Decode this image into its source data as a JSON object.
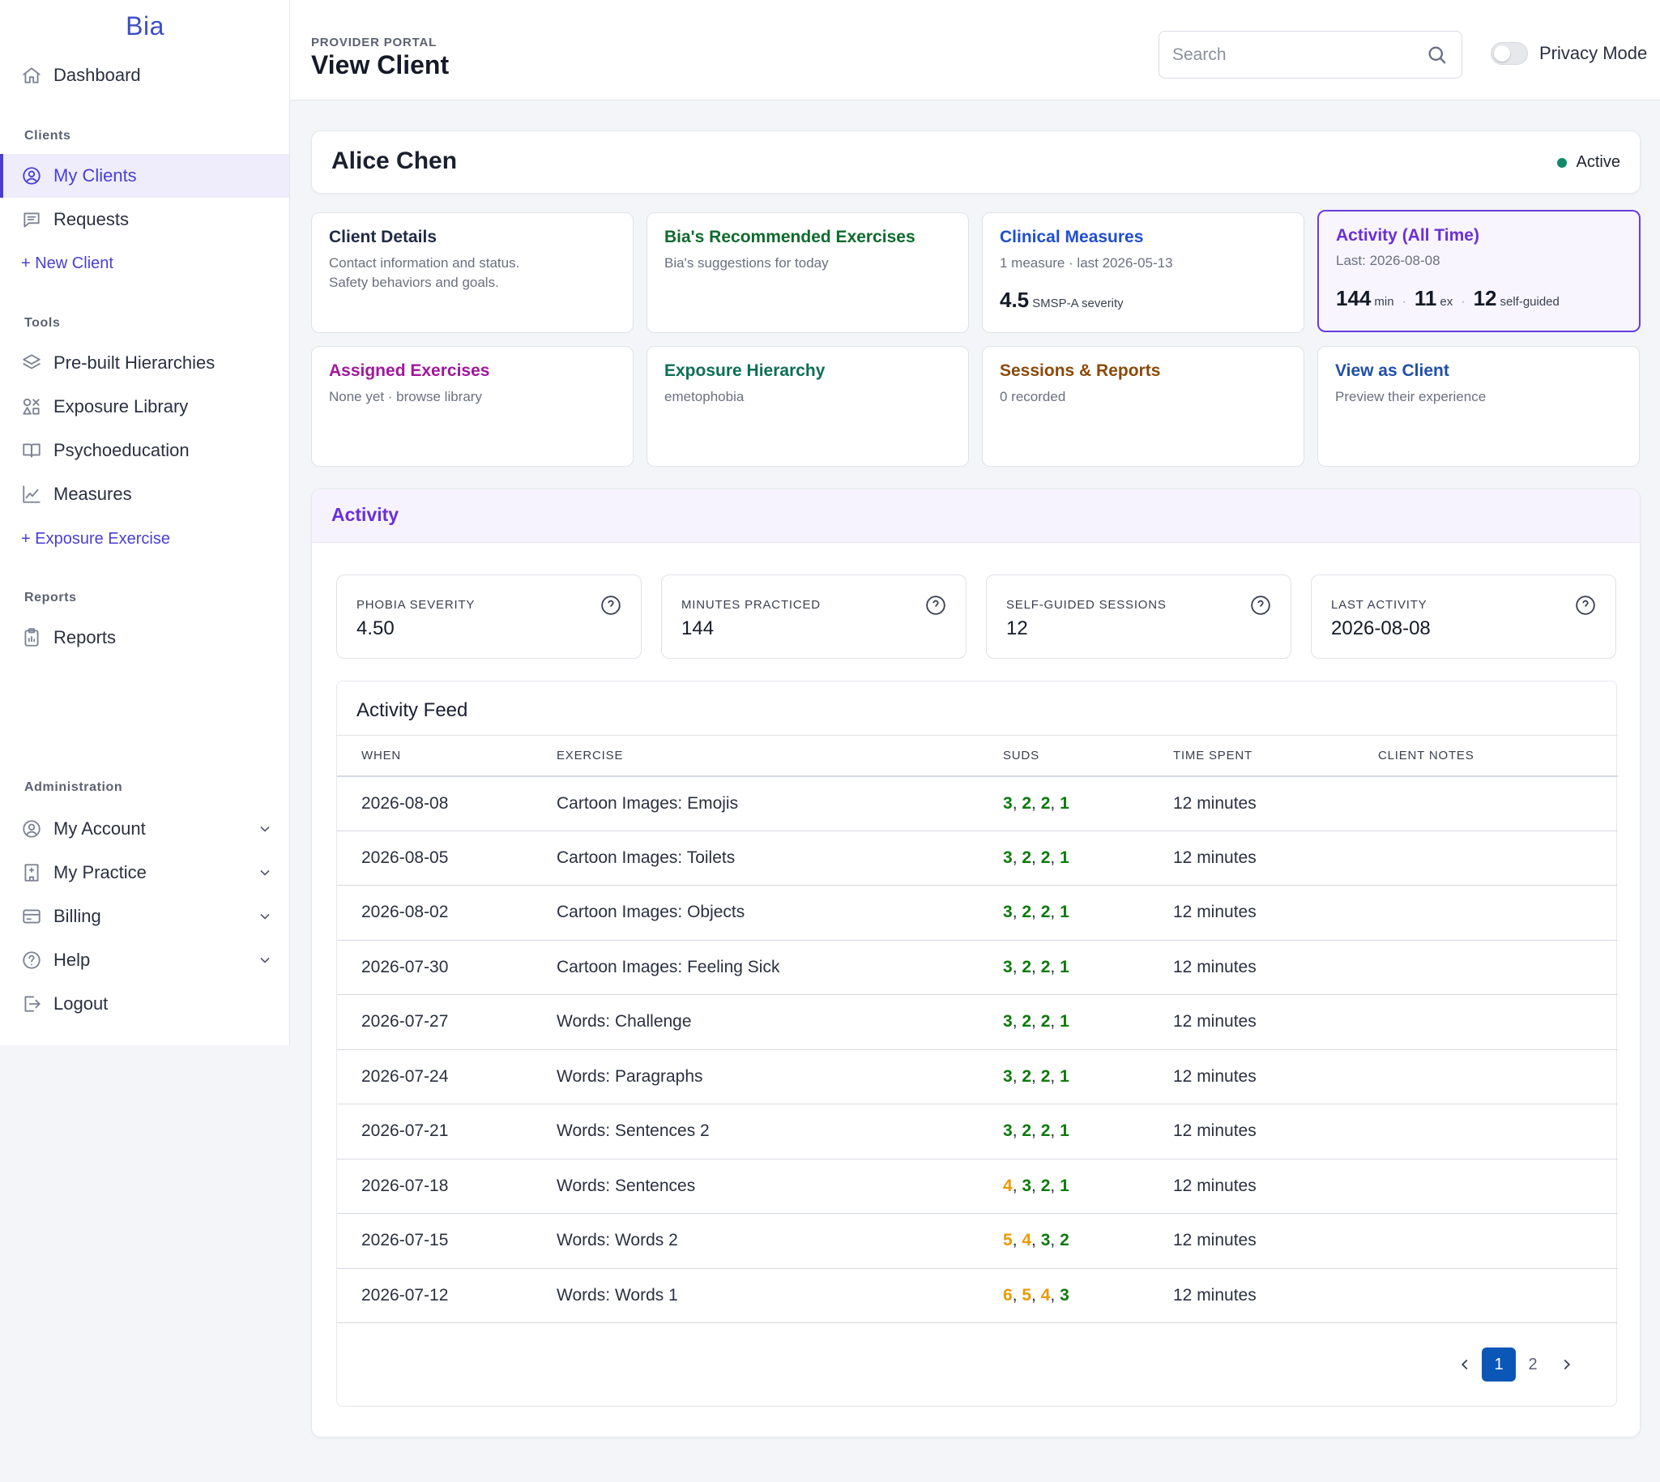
{
  "app": {
    "brand": "Bia"
  },
  "sidebar": {
    "dashboard": "Dashboard",
    "clients_label": "Clients",
    "my_clients": "My Clients",
    "requests": "Requests",
    "new_client": "+ New Client",
    "tools_label": "Tools",
    "prebuilt": "Pre-built Hierarchies",
    "exposure_library": "Exposure Library",
    "psychoeducation": "Psychoeducation",
    "measures": "Measures",
    "exposure_exercise": "+ Exposure Exercise",
    "reports_label": "Reports",
    "reports": "Reports",
    "admin_label": "Administration",
    "my_account": "My Account",
    "my_practice": "My Practice",
    "billing": "Billing",
    "help": "Help",
    "logout": "Logout"
  },
  "header": {
    "eyebrow": "PROVIDER PORTAL",
    "title": "View Client",
    "search_placeholder": "Search",
    "privacy_label": "Privacy Mode",
    "privacy_on": false
  },
  "client": {
    "name": "Alice Chen",
    "status": "Active",
    "status_color": "#0f8a6a"
  },
  "tiles": {
    "client_details": {
      "title": "Client Details",
      "sub1": "Contact information and status.",
      "sub2": "Safety behaviors and goals.",
      "color": "#1f2a44"
    },
    "recommended": {
      "title": "Bia's Recommended Exercises",
      "sub": "Bia's suggestions for today",
      "color": "#0f6a2c"
    },
    "clinical": {
      "title": "Clinical Measures",
      "sub": "1 measure · last 2026-05-13",
      "metric": "4.5",
      "metric_unit": "SMSP-A severity",
      "color": "#1f4fd1"
    },
    "activity": {
      "title": "Activity (All Time)",
      "sub": "Last: 2026-08-08",
      "minutes": "144",
      "minutes_unit": "min",
      "exercises": "11",
      "exercises_unit": "ex",
      "self_guided": "12",
      "self_guided_unit": "self-guided",
      "sep": "·",
      "color": "#6a2fd8"
    },
    "assigned": {
      "title": "Assigned Exercises",
      "sub": "None yet · browse library",
      "color": "#a0189a"
    },
    "hierarchy": {
      "title": "Exposure Hierarchy",
      "sub": "emetophobia",
      "color": "#0d6e57"
    },
    "sessions": {
      "title": "Sessions & Reports",
      "sub": "0 recorded",
      "color": "#8a4a0a"
    },
    "view_as": {
      "title": "View as Client",
      "sub": "Preview their experience",
      "color": "#1f4fa8"
    }
  },
  "activity": {
    "title": "Activity",
    "stats": [
      {
        "label": "PHOBIA SEVERITY",
        "value": "4.50"
      },
      {
        "label": "MINUTES PRACTICED",
        "value": "144"
      },
      {
        "label": "SELF-GUIDED SESSIONS",
        "value": "12"
      },
      {
        "label": "LAST ACTIVITY",
        "value": "2026-08-08"
      }
    ],
    "feed_title": "Activity Feed",
    "columns": [
      "WHEN",
      "EXERCISE",
      "SUDS",
      "TIME SPENT",
      "CLIENT NOTES"
    ],
    "rows": [
      {
        "when": "2026-08-08",
        "exercise": "Cartoon Images: Emojis",
        "suds": [
          3,
          2,
          2,
          1
        ],
        "time": "12 minutes",
        "notes": ""
      },
      {
        "when": "2026-08-05",
        "exercise": "Cartoon Images: Toilets",
        "suds": [
          3,
          2,
          2,
          1
        ],
        "time": "12 minutes",
        "notes": ""
      },
      {
        "when": "2026-08-02",
        "exercise": "Cartoon Images: Objects",
        "suds": [
          3,
          2,
          2,
          1
        ],
        "time": "12 minutes",
        "notes": ""
      },
      {
        "when": "2026-07-30",
        "exercise": "Cartoon Images: Feeling Sick",
        "suds": [
          3,
          2,
          2,
          1
        ],
        "time": "12 minutes",
        "notes": ""
      },
      {
        "when": "2026-07-27",
        "exercise": "Words: Challenge",
        "suds": [
          3,
          2,
          2,
          1
        ],
        "time": "12 minutes",
        "notes": ""
      },
      {
        "when": "2026-07-24",
        "exercise": "Words: Paragraphs",
        "suds": [
          3,
          2,
          2,
          1
        ],
        "time": "12 minutes",
        "notes": ""
      },
      {
        "when": "2026-07-21",
        "exercise": "Words: Sentences 2",
        "suds": [
          3,
          2,
          2,
          1
        ],
        "time": "12 minutes",
        "notes": ""
      },
      {
        "when": "2026-07-18",
        "exercise": "Words: Sentences",
        "suds": [
          4,
          3,
          2,
          1
        ],
        "time": "12 minutes",
        "notes": ""
      },
      {
        "when": "2026-07-15",
        "exercise": "Words: Words 2",
        "suds": [
          5,
          4,
          3,
          2
        ],
        "time": "12 minutes",
        "notes": ""
      },
      {
        "when": "2026-07-12",
        "exercise": "Words: Words 1",
        "suds": [
          6,
          5,
          4,
          3
        ],
        "time": "12 minutes",
        "notes": ""
      }
    ],
    "suds_colors": {
      "low": "#0d7a0d",
      "high": "#e89b00"
    },
    "pagination": {
      "pages": [
        "1",
        "2"
      ],
      "current": "1"
    }
  }
}
